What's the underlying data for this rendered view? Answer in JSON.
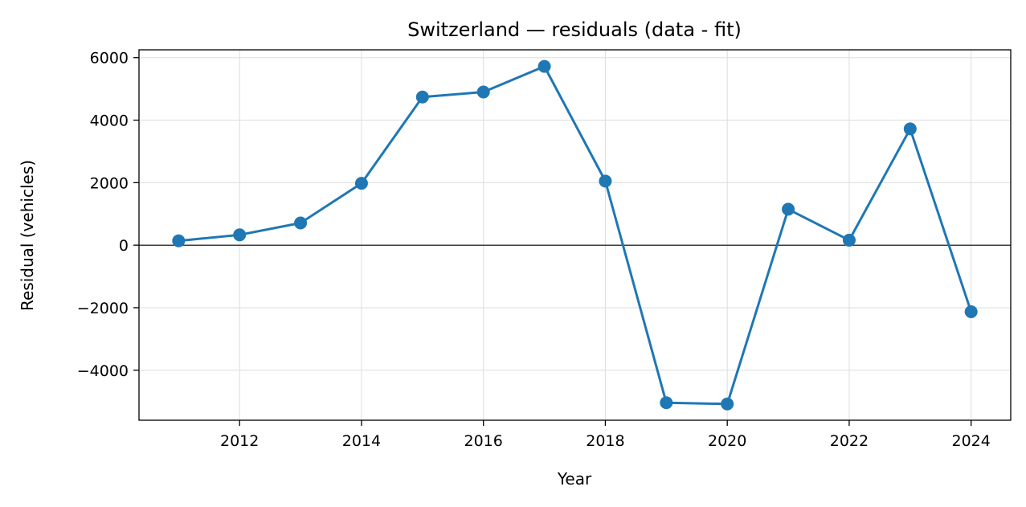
{
  "chart_data": {
    "type": "line",
    "title": "Switzerland — residuals (data - fit)",
    "xlabel": "Year",
    "ylabel": "Residual (vehicles)",
    "x": [
      2011,
      2012,
      2013,
      2014,
      2015,
      2016,
      2017,
      2018,
      2019,
      2020,
      2021,
      2022,
      2023,
      2024
    ],
    "series": [
      {
        "values": [
          140,
          330,
          710,
          1980,
          4740,
          4900,
          5720,
          2050,
          -5040,
          -5080,
          1150,
          160,
          3720,
          -2130
        ],
        "color": "#1f77b4",
        "marker": "circle"
      }
    ],
    "xlim": [
      2010.35,
      2024.65
    ],
    "ylim": [
      -5600,
      6250
    ],
    "xticks": [
      {
        "value": 2012,
        "label": "2012"
      },
      {
        "value": 2014,
        "label": "2014"
      },
      {
        "value": 2016,
        "label": "2016"
      },
      {
        "value": 2018,
        "label": "2018"
      },
      {
        "value": 2020,
        "label": "2020"
      },
      {
        "value": 2022,
        "label": "2022"
      },
      {
        "value": 2024,
        "label": "2024"
      }
    ],
    "yticks": [
      {
        "value": -4000,
        "label": "−4000"
      },
      {
        "value": -2000,
        "label": "−2000"
      },
      {
        "value": 0,
        "label": "0"
      },
      {
        "value": 2000,
        "label": "2000"
      },
      {
        "value": 4000,
        "label": "4000"
      },
      {
        "value": 6000,
        "label": "6000"
      }
    ],
    "reference_line_y": 0,
    "grid": true
  }
}
